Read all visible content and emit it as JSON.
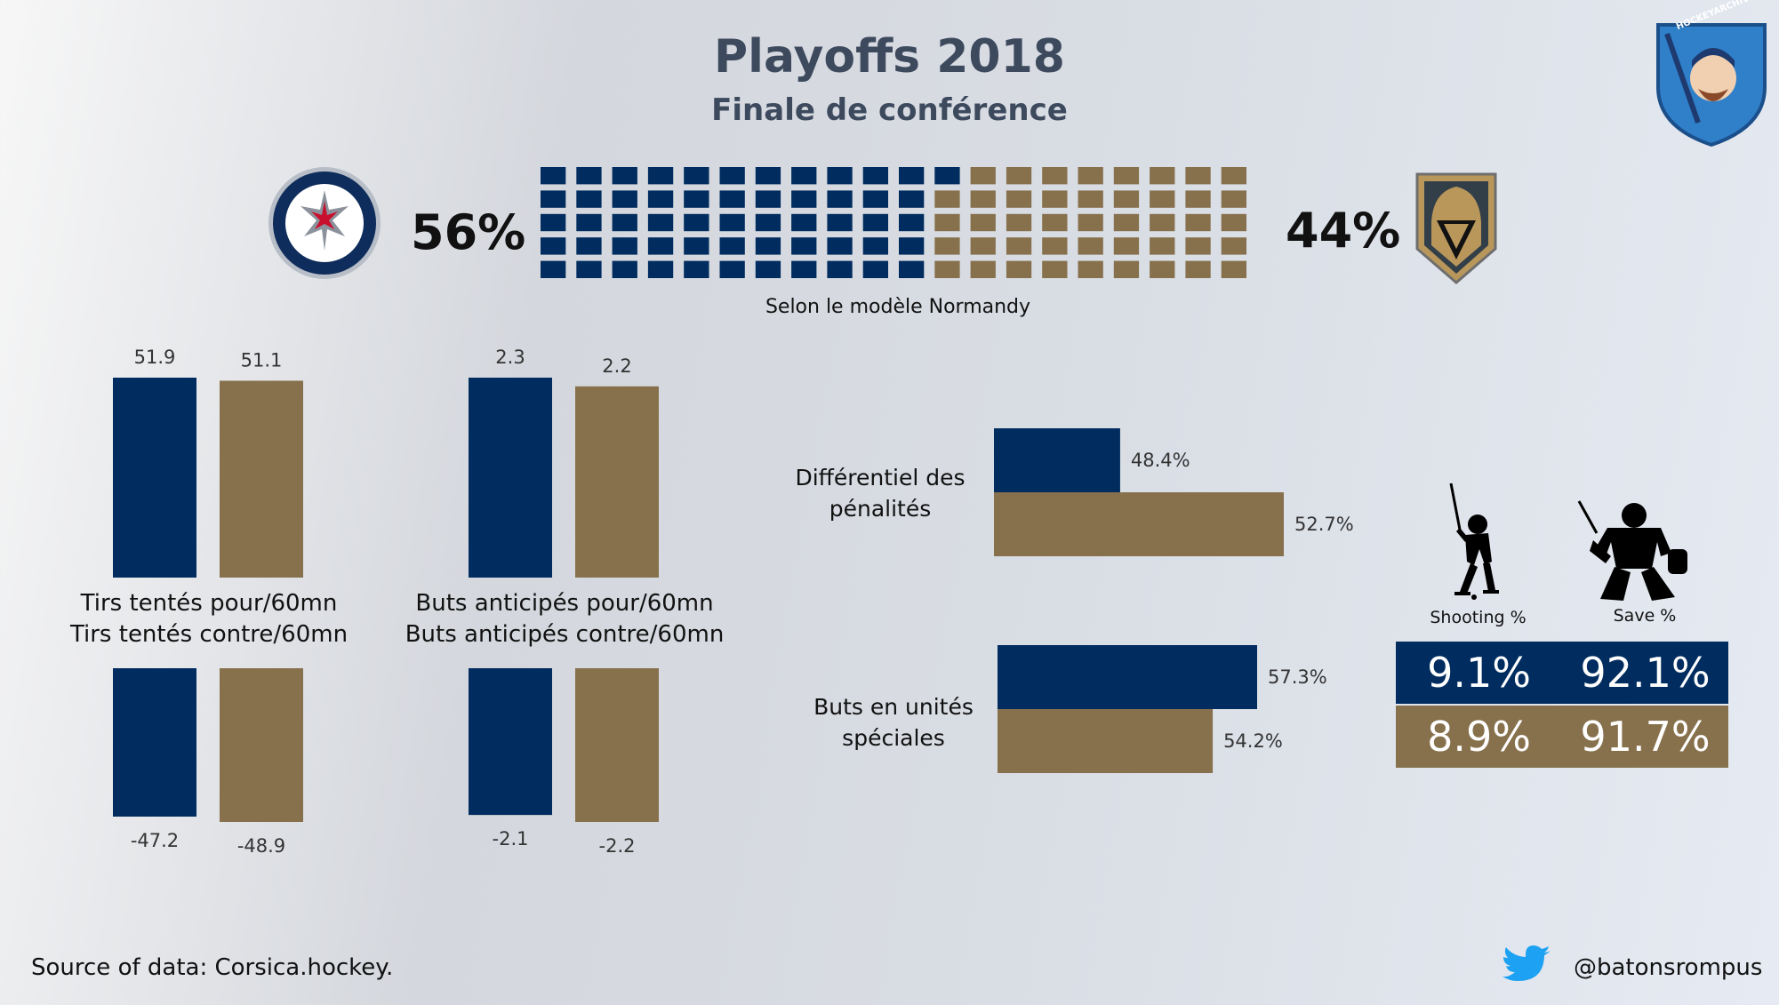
{
  "header": {
    "title": "Playoffs 2018",
    "subtitle": "Finale de conférence",
    "brand_logo_text": "HOCKEYARCHIVES.INFO"
  },
  "colors": {
    "team1": "#002c5f",
    "team2": "#87714d",
    "title": "#3d4a5e"
  },
  "teams": [
    {
      "logo_icon": "winnipeg-jets-logo-icon",
      "probability": "56%"
    },
    {
      "logo_icon": "vegas-golden-knights-logo-icon",
      "probability": "44%"
    }
  ],
  "model_caption": "Selon le modèle Normandy",
  "chart_data": [
    {
      "type": "waffle",
      "team1_pct": 56,
      "team2_pct": 44,
      "grid_columns": 20,
      "grid_rows": 5,
      "caption": "Selon le modèle Normandy"
    },
    {
      "type": "bar",
      "label_top": "Tirs tentés pour/60mn",
      "label_bottom": "Tirs tentés contre/60mn",
      "series": [
        {
          "team": 1,
          "for": 51.9,
          "against": -47.2,
          "for_label": "51.9",
          "against_label": "-47.2"
        },
        {
          "team": 2,
          "for": 51.1,
          "against": -48.9,
          "for_label": "51.1",
          "against_label": "-48.9"
        }
      ]
    },
    {
      "type": "bar",
      "label_top": "Buts anticipés pour/60mn",
      "label_bottom": "Buts anticipés contre/60mn",
      "series": [
        {
          "team": 1,
          "for": 2.3,
          "against": -2.1,
          "for_label": "2.3",
          "against_label": "-2.1"
        },
        {
          "team": 2,
          "for": 2.2,
          "against": -2.2,
          "for_label": "2.2",
          "against_label": "-2.2"
        }
      ]
    },
    {
      "type": "bar",
      "orientation": "horizontal",
      "label_line1": "Différentiel des",
      "label_line2": "pénalités",
      "values": [
        48.4,
        52.7
      ],
      "value_labels": [
        "48.4%",
        "52.7%"
      ]
    },
    {
      "type": "bar",
      "orientation": "horizontal",
      "label_line1": "Buts en unités",
      "label_line2": "spéciales",
      "values": [
        57.3,
        54.2
      ],
      "value_labels": [
        "57.3%",
        "54.2%"
      ]
    },
    {
      "type": "table",
      "columns": [
        "Shooting %",
        "Save %"
      ],
      "rows": [
        [
          "9.1%",
          "92.1%"
        ],
        [
          "8.9%",
          "91.7%"
        ]
      ]
    }
  ],
  "footer": {
    "source": "Source of data: Corsica.hockey.",
    "twitter_handle": "@batonsrompus"
  }
}
